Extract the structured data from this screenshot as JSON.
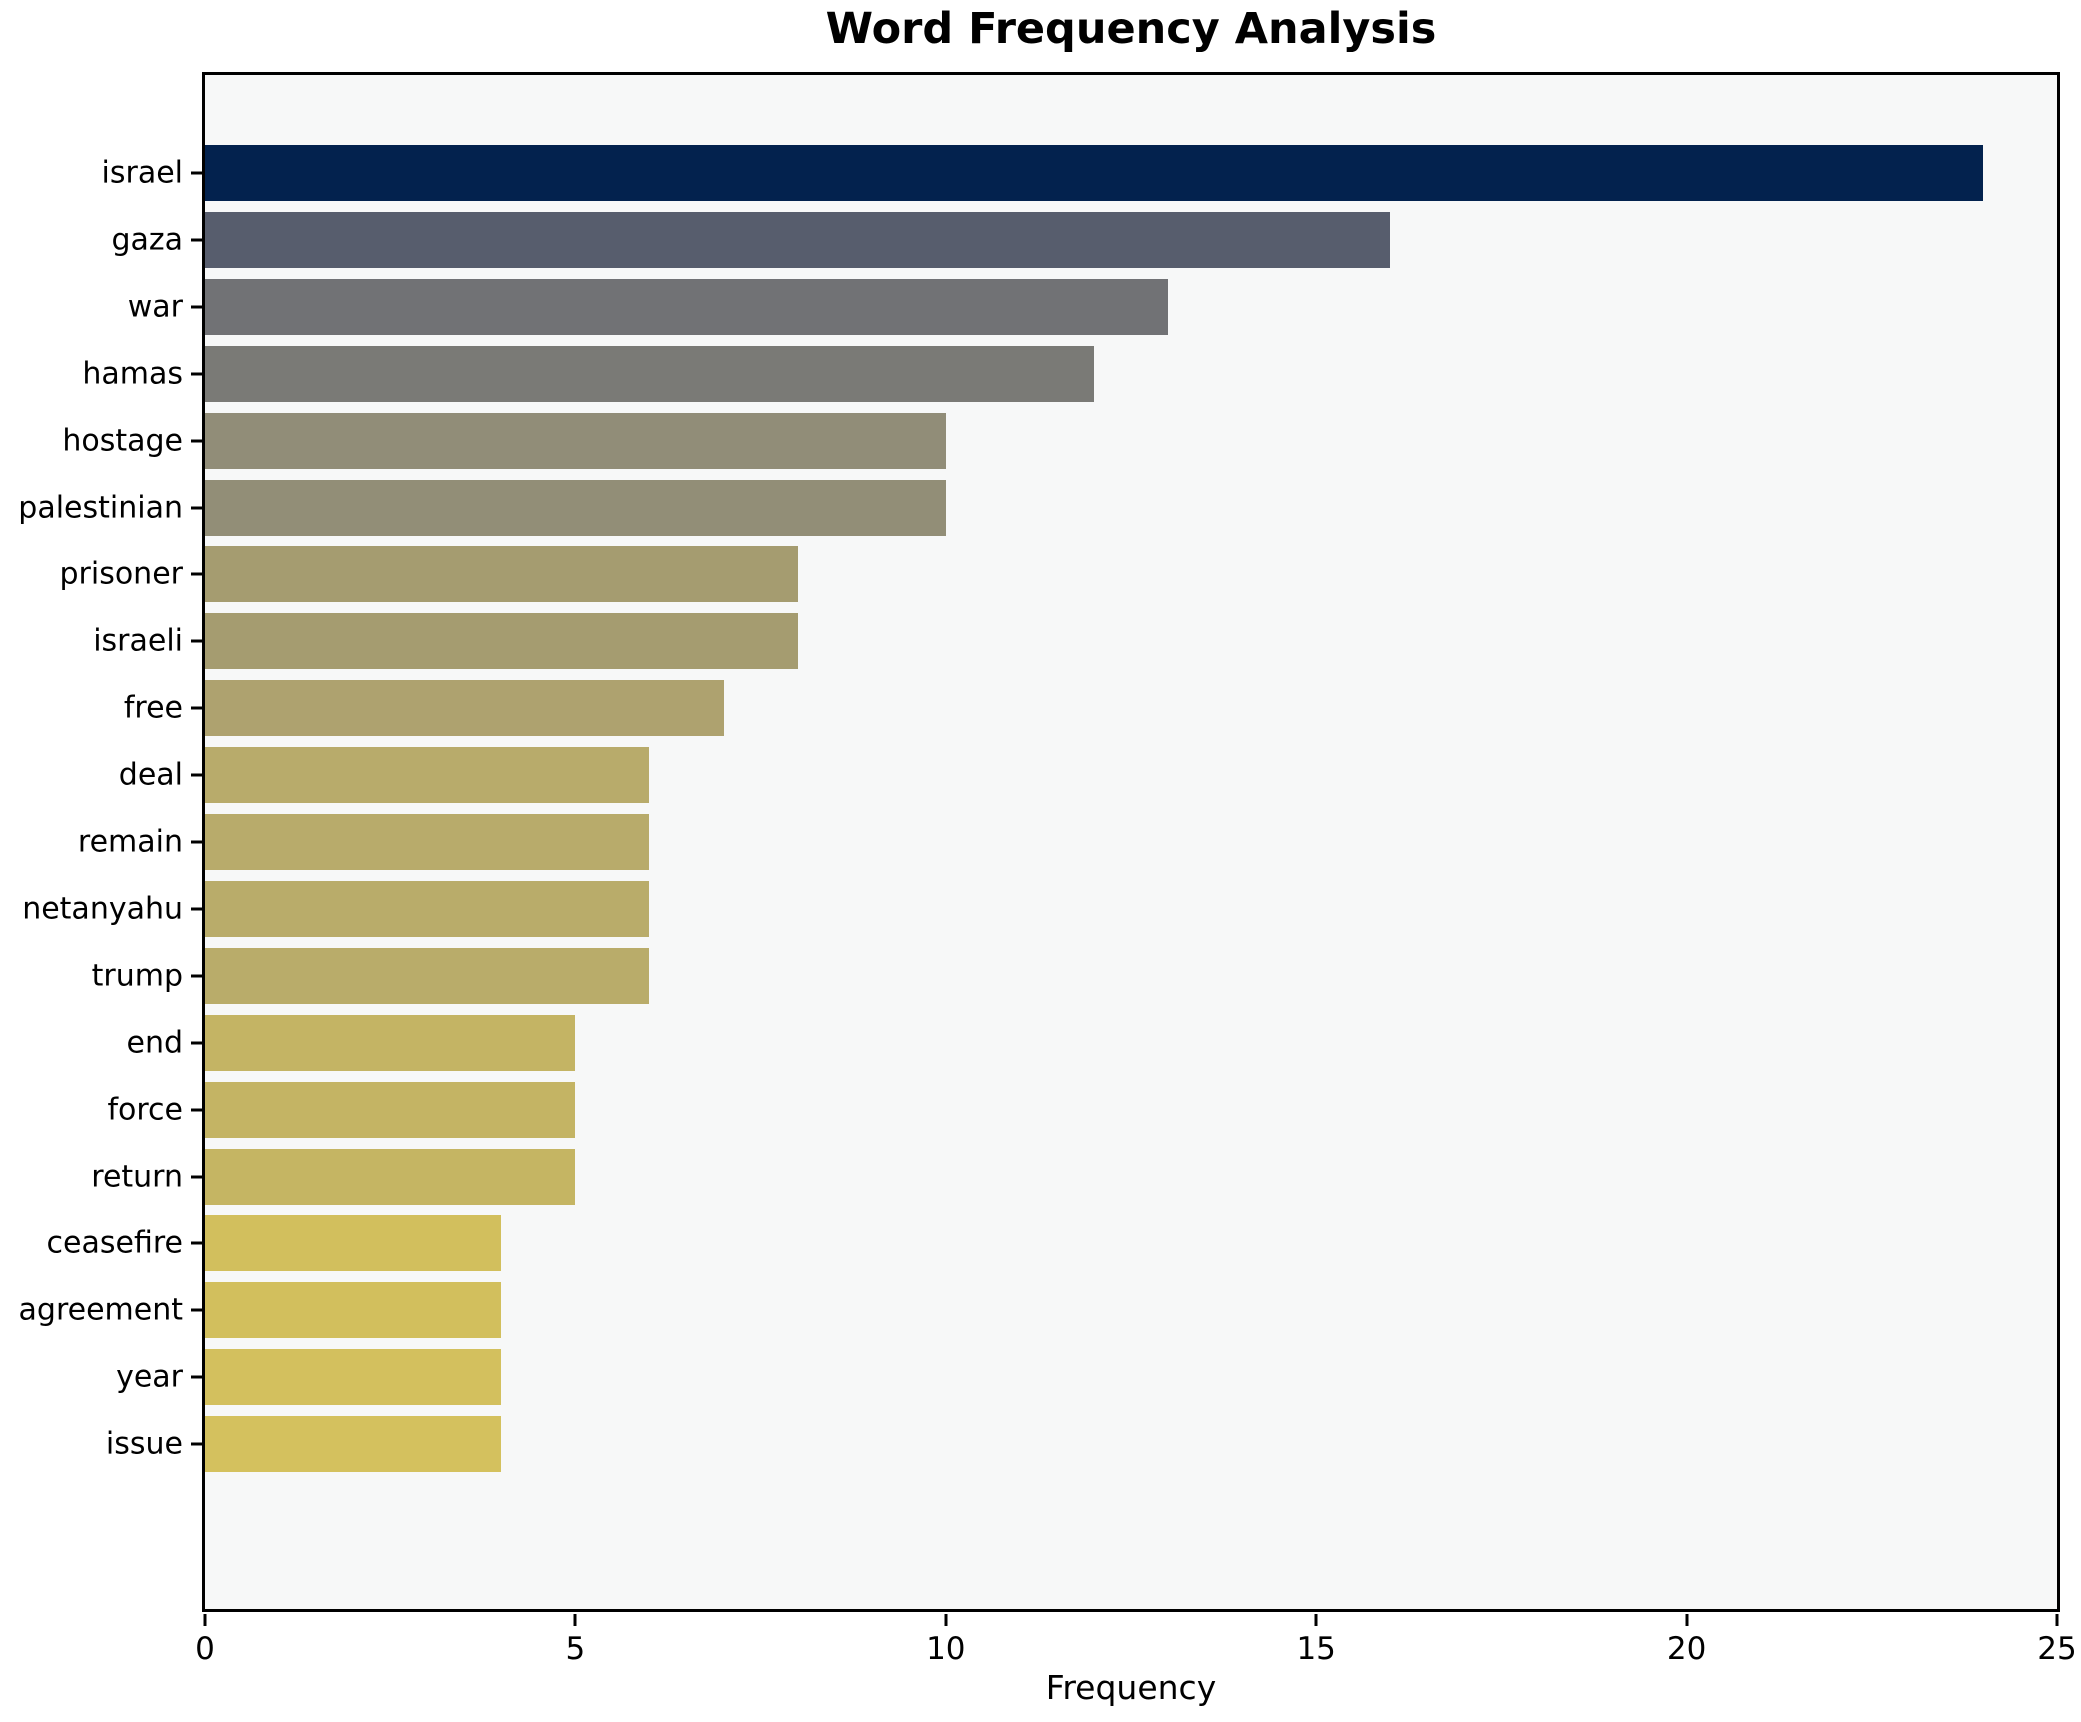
{
  "chart_data": {
    "type": "bar",
    "orientation": "horizontal",
    "title": "Word Frequency Analysis",
    "xlabel": "Frequency",
    "ylabel": "",
    "xlim": [
      0,
      25
    ],
    "xticks": [
      0,
      5,
      10,
      15,
      20,
      25
    ],
    "grid": false,
    "legend_position": "none",
    "categories": [
      "israel",
      "gaza",
      "war",
      "hamas",
      "hostage",
      "palestinian",
      "prisoner",
      "israeli",
      "free",
      "deal",
      "remain",
      "netanyahu",
      "trump",
      "end",
      "force",
      "return",
      "ceasefire",
      "agreement",
      "year",
      "issue"
    ],
    "values": [
      24,
      16,
      13,
      12,
      10,
      10,
      8,
      8,
      7,
      6,
      6,
      6,
      6,
      5,
      5,
      5,
      4,
      4,
      4,
      4
    ],
    "bar_colors": [
      "#03224e",
      "#575d6d",
      "#717275",
      "#7a7a76",
      "#918d78",
      "#928e77",
      "#a59c70",
      "#a59c70",
      "#aea26f",
      "#b8ab6b",
      "#b8ab6b",
      "#b9ac6a",
      "#b9ac6a",
      "#c4b464",
      "#c4b464",
      "#c5b563",
      "#d2bf5d",
      "#d2bf5d",
      "#d3c05e",
      "#d4c15e"
    ],
    "plot_bg": "#f7f8f8",
    "figure_bg": "#ffffff",
    "spine_color": "#000000",
    "text_color": "#000000"
  }
}
